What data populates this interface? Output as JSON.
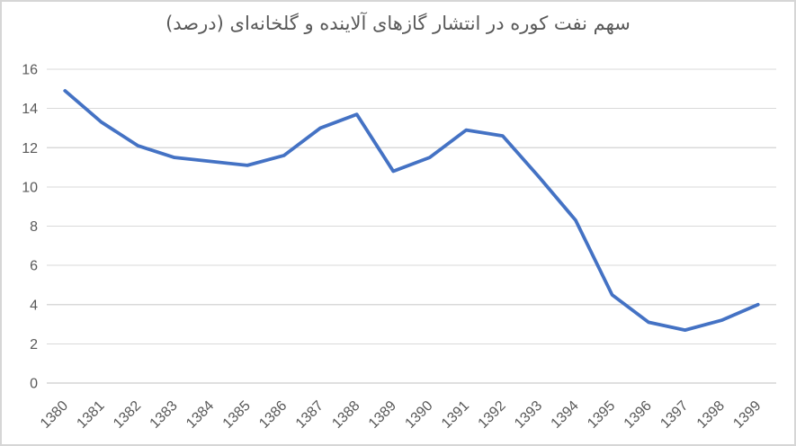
{
  "chart": {
    "accent_color": "#4472C4",
    "text_color": "#595959",
    "gridline_color": "#D9D9D9",
    "axis_line_color": "#BFBFBF",
    "frame_border_color": "#D6D6D6"
  },
  "chart_data": {
    "type": "line",
    "title": "سهم نفت کوره در انتشار گازهای آلاینده و گلخانه‌ای (درصد)",
    "categories": [
      "1380",
      "1381",
      "1382",
      "1383",
      "1384",
      "1385",
      "1386",
      "1387",
      "1388",
      "1389",
      "1390",
      "1391",
      "1392",
      "1393",
      "1394",
      "1395",
      "1396",
      "1397",
      "1398",
      "1399"
    ],
    "values": [
      14.9,
      13.3,
      12.1,
      11.5,
      11.3,
      11.1,
      11.6,
      13.0,
      13.7,
      10.8,
      11.5,
      12.9,
      12.6,
      10.5,
      8.3,
      4.5,
      3.1,
      2.7,
      3.2,
      4.0
    ],
    "xlabel": "",
    "ylabel": "",
    "ylim": [
      0,
      16
    ],
    "yticks": [
      0,
      2,
      4,
      6,
      8,
      10,
      12,
      14,
      16
    ],
    "grid": true,
    "legend": false,
    "x_label_rotation_deg": -45,
    "line_width": 3.8
  }
}
